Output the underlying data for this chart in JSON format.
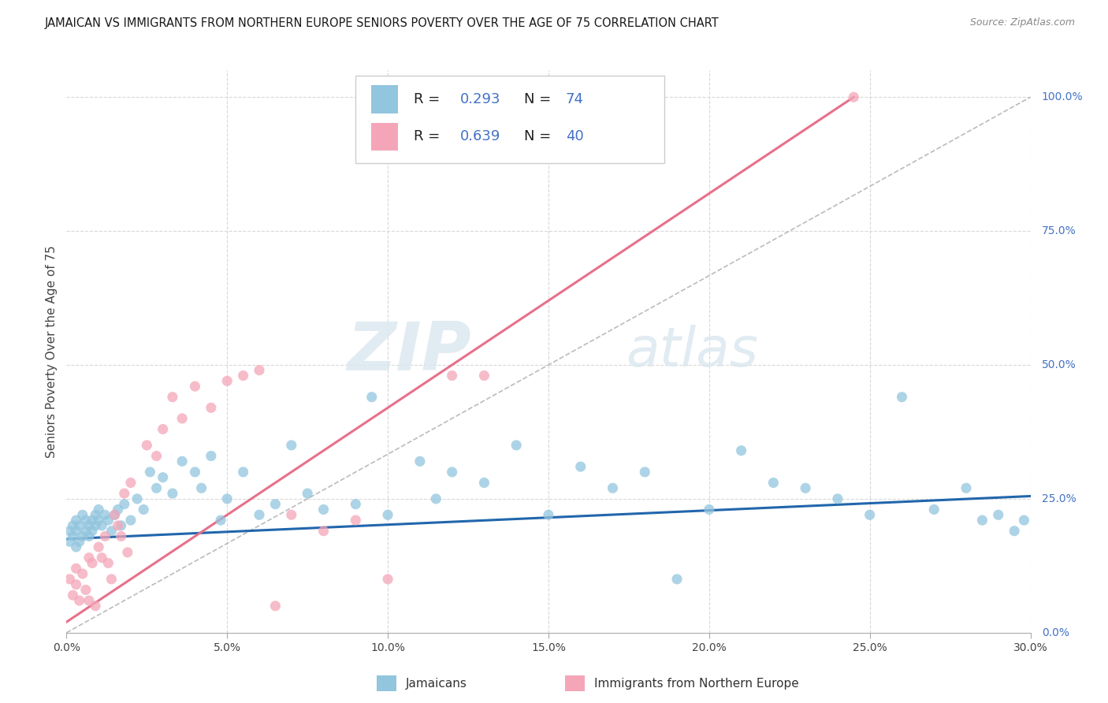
{
  "title": "JAMAICAN VS IMMIGRANTS FROM NORTHERN EUROPE SENIORS POVERTY OVER THE AGE OF 75 CORRELATION CHART",
  "source": "Source: ZipAtlas.com",
  "ylabel": "Seniors Poverty Over the Age of 75",
  "xmin": 0.0,
  "xmax": 0.3,
  "ymin": 0.0,
  "ymax": 1.05,
  "legend_label1": "Jamaicans",
  "legend_label2": "Immigrants from Northern Europe",
  "R1": 0.293,
  "N1": 74,
  "R2": 0.639,
  "N2": 40,
  "color_blue": "#92c5de",
  "color_pink": "#f4a6b8",
  "color_blue_line": "#2166ac",
  "color_pink_line": "#e8708a",
  "color_diag": "#bbbbbb",
  "background_color": "#ffffff",
  "watermark_zip": "ZIP",
  "watermark_atlas": "atlas",
  "blue_line_x": [
    0.0,
    0.3
  ],
  "blue_line_y": [
    0.175,
    0.255
  ],
  "pink_line_x": [
    0.0,
    0.245
  ],
  "pink_line_y": [
    0.02,
    1.0
  ],
  "diag_line_x": [
    0.0,
    0.3
  ],
  "diag_line_y": [
    0.0,
    1.0
  ],
  "blue_x": [
    0.001,
    0.001,
    0.002,
    0.002,
    0.003,
    0.003,
    0.003,
    0.004,
    0.004,
    0.005,
    0.005,
    0.006,
    0.006,
    0.007,
    0.007,
    0.008,
    0.008,
    0.009,
    0.009,
    0.01,
    0.01,
    0.011,
    0.012,
    0.013,
    0.014,
    0.015,
    0.016,
    0.017,
    0.018,
    0.02,
    0.022,
    0.024,
    0.026,
    0.028,
    0.03,
    0.033,
    0.036,
    0.04,
    0.042,
    0.045,
    0.048,
    0.05,
    0.055,
    0.06,
    0.065,
    0.07,
    0.075,
    0.08,
    0.09,
    0.095,
    0.1,
    0.11,
    0.115,
    0.12,
    0.13,
    0.14,
    0.15,
    0.16,
    0.17,
    0.18,
    0.19,
    0.2,
    0.21,
    0.22,
    0.23,
    0.24,
    0.25,
    0.26,
    0.27,
    0.28,
    0.285,
    0.29,
    0.295,
    0.298
  ],
  "blue_y": [
    0.19,
    0.17,
    0.18,
    0.2,
    0.16,
    0.19,
    0.21,
    0.17,
    0.2,
    0.18,
    0.22,
    0.19,
    0.21,
    0.2,
    0.18,
    0.21,
    0.19,
    0.22,
    0.2,
    0.23,
    0.21,
    0.2,
    0.22,
    0.21,
    0.19,
    0.22,
    0.23,
    0.2,
    0.24,
    0.21,
    0.25,
    0.23,
    0.3,
    0.27,
    0.29,
    0.26,
    0.32,
    0.3,
    0.27,
    0.33,
    0.21,
    0.25,
    0.3,
    0.22,
    0.24,
    0.35,
    0.26,
    0.23,
    0.24,
    0.44,
    0.22,
    0.32,
    0.25,
    0.3,
    0.28,
    0.35,
    0.22,
    0.31,
    0.27,
    0.3,
    0.1,
    0.23,
    0.34,
    0.28,
    0.27,
    0.25,
    0.22,
    0.44,
    0.23,
    0.27,
    0.21,
    0.22,
    0.19,
    0.21
  ],
  "pink_x": [
    0.001,
    0.002,
    0.003,
    0.003,
    0.004,
    0.005,
    0.006,
    0.007,
    0.007,
    0.008,
    0.009,
    0.01,
    0.011,
    0.012,
    0.013,
    0.014,
    0.015,
    0.016,
    0.017,
    0.018,
    0.019,
    0.02,
    0.025,
    0.028,
    0.03,
    0.033,
    0.036,
    0.04,
    0.045,
    0.05,
    0.055,
    0.06,
    0.065,
    0.07,
    0.08,
    0.09,
    0.1,
    0.12,
    0.13,
    0.245
  ],
  "pink_y": [
    0.1,
    0.07,
    0.09,
    0.12,
    0.06,
    0.11,
    0.08,
    0.14,
    0.06,
    0.13,
    0.05,
    0.16,
    0.14,
    0.18,
    0.13,
    0.1,
    0.22,
    0.2,
    0.18,
    0.26,
    0.15,
    0.28,
    0.35,
    0.33,
    0.38,
    0.44,
    0.4,
    0.46,
    0.42,
    0.47,
    0.48,
    0.49,
    0.05,
    0.22,
    0.19,
    0.21,
    0.1,
    0.48,
    0.48,
    1.0
  ]
}
